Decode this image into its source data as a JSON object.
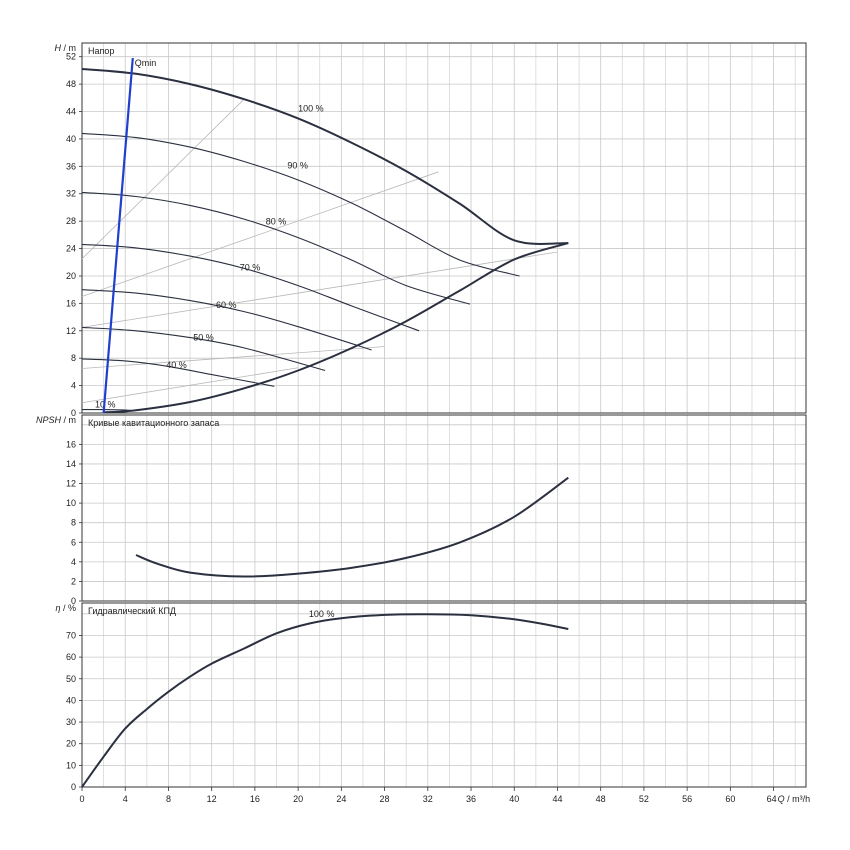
{
  "chart_data": [
    {
      "type": "line",
      "panel_label": "Напор",
      "yaxis_symbol": "H",
      "yaxis_unit": "m",
      "xlim": [
        0,
        67
      ],
      "ylim": [
        0,
        54
      ],
      "xticks": [
        0,
        4,
        8,
        12,
        16,
        20,
        24,
        28,
        32,
        36,
        40,
        44,
        48,
        52,
        56,
        60,
        64
      ],
      "yticks": [
        0,
        4,
        8,
        12,
        16,
        20,
        24,
        28,
        32,
        36,
        40,
        44,
        48,
        52
      ],
      "grid": true,
      "speed_curves": [
        {
          "label": "100 %",
          "label_at": [
            20.0,
            44.0
          ],
          "points": [
            [
              0,
              50.2
            ],
            [
              5,
              49.5
            ],
            [
              10,
              48
            ],
            [
              15,
              45.8
            ],
            [
              20,
              43
            ],
            [
              25,
              39.4
            ],
            [
              30,
              35.3
            ],
            [
              35,
              30.5
            ],
            [
              40,
              25.2
            ],
            [
              45,
              24.8
            ]
          ]
        },
        {
          "label": "90 %",
          "label_at": [
            19.0,
            35.7
          ],
          "points": [
            [
              0,
              40.8
            ],
            [
              5,
              40.2
            ],
            [
              10,
              38.8
            ],
            [
              15,
              36.7
            ],
            [
              20,
              34
            ],
            [
              25,
              30.6
            ],
            [
              30,
              26.5
            ],
            [
              35,
              22.3
            ],
            [
              40.5,
              20
            ]
          ]
        },
        {
          "label": "80 %",
          "label_at": [
            17.0,
            27.5
          ],
          "points": [
            [
              0,
              32.2
            ],
            [
              5,
              31.6
            ],
            [
              10,
              30.3
            ],
            [
              15,
              28.3
            ],
            [
              20,
              25.6
            ],
            [
              25,
              22.3
            ],
            [
              30,
              18.6
            ],
            [
              35.9,
              15.9
            ]
          ]
        },
        {
          "label": "70 %",
          "label_at": [
            14.6,
            20.8
          ],
          "points": [
            [
              0,
              24.6
            ],
            [
              5,
              24.1
            ],
            [
              10,
              22.9
            ],
            [
              15,
              21.1
            ],
            [
              20,
              18.6
            ],
            [
              25,
              15.6
            ],
            [
              31.2,
              12
            ]
          ]
        },
        {
          "label": "60 %",
          "label_at": [
            12.4,
            15.3
          ],
          "points": [
            [
              0,
              18
            ],
            [
              5,
              17.5
            ],
            [
              10,
              16.4
            ],
            [
              15,
              14.8
            ],
            [
              20,
              12.6
            ],
            [
              26.8,
              9.2
            ]
          ]
        },
        {
          "label": "50 %",
          "label_at": [
            10.3,
            10.6
          ],
          "points": [
            [
              0,
              12.5
            ],
            [
              5,
              12
            ],
            [
              10,
              11
            ],
            [
              15,
              9.5
            ],
            [
              22.5,
              6.2
            ]
          ]
        },
        {
          "label": "40 %",
          "label_at": [
            7.8,
            6.6
          ],
          "points": [
            [
              0,
              7.9
            ],
            [
              4,
              7.6
            ],
            [
              8,
              6.8
            ],
            [
              12,
              5.6
            ],
            [
              17.8,
              3.9
            ]
          ]
        },
        {
          "label": "10 %",
          "label_at": [
            1.2,
            0.8
          ],
          "points": [
            [
              0,
              0.5
            ],
            [
              2,
              0.5
            ],
            [
              4.5,
              0.4
            ]
          ]
        }
      ],
      "end_curve": {
        "points": [
          [
            2,
            0.1
          ],
          [
            5,
            0.4
          ],
          [
            10,
            1.6
          ],
          [
            15,
            3.6
          ],
          [
            20,
            6.2
          ],
          [
            25,
            9.5
          ],
          [
            30,
            13.4
          ],
          [
            35,
            17.9
          ],
          [
            40,
            22.4
          ],
          [
            45,
            24.8
          ]
        ]
      },
      "efficiency_lines": [
        {
          "points": [
            [
              0,
              22.5
            ],
            [
              15,
              45.8
            ]
          ]
        },
        {
          "points": [
            [
              0,
              17
            ],
            [
              33,
              35.2
            ]
          ]
        },
        {
          "points": [
            [
              0,
              12.5
            ],
            [
              44,
              23.5
            ]
          ]
        },
        {
          "points": [
            [
              0,
              6.5
            ],
            [
              28,
              9.7
            ]
          ]
        },
        {
          "points": [
            [
              0,
              1.5
            ],
            [
              20,
              6.6
            ]
          ]
        }
      ],
      "qmin_line": {
        "label": "Qmin",
        "color": "#1f3fcf",
        "points": [
          [
            2,
            0
          ],
          [
            4.7,
            51.8
          ]
        ]
      }
    },
    {
      "type": "line",
      "panel_label": "Кривые кавитационного запаса",
      "yaxis_symbol": "NPSH",
      "yaxis_unit": "m",
      "xlim": [
        0,
        67
      ],
      "ylim": [
        0,
        19
      ],
      "yticks": [
        0,
        2,
        4,
        6,
        8,
        10,
        12,
        14,
        16
      ],
      "grid": true,
      "series": [
        {
          "points": [
            [
              5,
              4.7
            ],
            [
              7,
              3.8
            ],
            [
              10,
              2.9
            ],
            [
              15,
              2.5
            ],
            [
              20,
              2.8
            ],
            [
              25,
              3.4
            ],
            [
              30,
              4.4
            ],
            [
              35,
              6.0
            ],
            [
              40,
              8.6
            ],
            [
              45,
              12.6
            ]
          ]
        }
      ]
    },
    {
      "type": "line",
      "panel_label": "Гидравлический КПД",
      "yaxis_symbol": "η",
      "yaxis_unit": "%",
      "xlim": [
        0,
        67
      ],
      "ylim": [
        0,
        85
      ],
      "yticks": [
        0,
        10,
        20,
        30,
        40,
        50,
        60,
        70
      ],
      "grid": true,
      "xaxis_symbol": "Q",
      "xaxis_unit": "m³/h",
      "series": [
        {
          "label": "100 %",
          "label_at": [
            21.0,
            78.5
          ],
          "points": [
            [
              0,
              0
            ],
            [
              2,
              14
            ],
            [
              4,
              27
            ],
            [
              6,
              36
            ],
            [
              8,
              44
            ],
            [
              10,
              51
            ],
            [
              12,
              57
            ],
            [
              15,
              64
            ],
            [
              18,
              71
            ],
            [
              21,
              75.5
            ],
            [
              24,
              78
            ],
            [
              28,
              79.5
            ],
            [
              32,
              79.8
            ],
            [
              36,
              79.3
            ],
            [
              40,
              77.5
            ],
            [
              43,
              75
            ],
            [
              45,
              73
            ]
          ]
        }
      ]
    }
  ]
}
